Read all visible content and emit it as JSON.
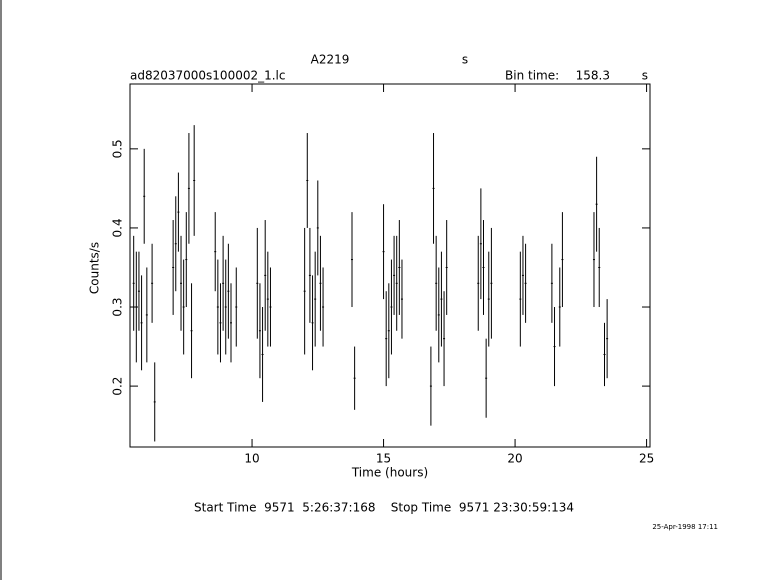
{
  "chart_data": {
    "type": "scatter",
    "title": "A2219",
    "title_unit": "s",
    "file": "ad82037000s100002_1.lc",
    "bin_time_label": "Bin time:",
    "bin_time": "158.3",
    "bin_time_unit": "s",
    "xlabel": "Time (hours)",
    "ylabel": "Counts/s",
    "footer": "Start Time  9571  5:26:37:168    Stop Time  9571 23:30:59:134",
    "stamp": "25-Apr-1998 17:11",
    "color": "#000000",
    "xlim": [
      5.36,
      25.13
    ],
    "ylim": [
      0.123,
      0.582
    ],
    "xticks": [
      10,
      15,
      20,
      25
    ],
    "yticks": [
      0.2,
      0.3,
      0.4,
      0.5
    ],
    "x": [
      5.5,
      5.6,
      5.7,
      5.8,
      5.9,
      6.0,
      6.2,
      6.3,
      7.0,
      7.1,
      7.2,
      7.3,
      7.4,
      7.5,
      7.6,
      7.7,
      7.8,
      8.6,
      8.7,
      8.8,
      8.9,
      9.0,
      9.1,
      9.2,
      9.4,
      10.2,
      10.3,
      10.4,
      10.5,
      10.6,
      10.7,
      12.0,
      12.1,
      12.2,
      12.3,
      12.4,
      12.5,
      12.6,
      12.7,
      13.8,
      13.9,
      15.0,
      15.1,
      15.2,
      15.3,
      15.4,
      15.5,
      15.6,
      15.7,
      16.8,
      16.9,
      17.0,
      17.1,
      17.2,
      17.3,
      17.4,
      18.6,
      18.7,
      18.8,
      18.9,
      19.0,
      19.1,
      20.2,
      20.3,
      20.4,
      21.4,
      21.5,
      21.7,
      21.8,
      23.0,
      23.1,
      23.2,
      23.4,
      23.5
    ],
    "values": [
      0.33,
      0.3,
      0.32,
      0.28,
      0.44,
      0.29,
      0.33,
      0.18,
      0.35,
      0.38,
      0.42,
      0.33,
      0.3,
      0.36,
      0.45,
      0.27,
      0.46,
      0.37,
      0.3,
      0.28,
      0.33,
      0.3,
      0.32,
      0.28,
      0.3,
      0.33,
      0.27,
      0.24,
      0.34,
      0.31,
      0.3,
      0.32,
      0.46,
      0.34,
      0.28,
      0.31,
      0.4,
      0.33,
      0.3,
      0.36,
      0.21,
      0.37,
      0.26,
      0.27,
      0.3,
      0.34,
      0.33,
      0.35,
      0.31,
      0.2,
      0.45,
      0.33,
      0.29,
      0.31,
      0.26,
      0.35,
      0.33,
      0.38,
      0.35,
      0.21,
      0.31,
      0.33,
      0.31,
      0.34,
      0.33,
      0.33,
      0.25,
      0.3,
      0.36,
      0.36,
      0.43,
      0.35,
      0.24,
      0.26
    ],
    "errors": [
      0.06,
      0.07,
      0.05,
      0.06,
      0.06,
      0.06,
      0.05,
      0.05,
      0.06,
      0.06,
      0.05,
      0.06,
      0.06,
      0.06,
      0.07,
      0.06,
      0.07,
      0.05,
      0.06,
      0.05,
      0.06,
      0.06,
      0.06,
      0.05,
      0.05,
      0.07,
      0.06,
      0.06,
      0.07,
      0.06,
      0.05,
      0.08,
      0.06,
      0.06,
      0.06,
      0.06,
      0.06,
      0.06,
      0.05,
      0.06,
      0.04,
      0.06,
      0.06,
      0.06,
      0.06,
      0.05,
      0.06,
      0.06,
      0.05,
      0.05,
      0.07,
      0.06,
      0.06,
      0.06,
      0.06,
      0.06,
      0.06,
      0.07,
      0.06,
      0.05,
      0.06,
      0.07,
      0.06,
      0.05,
      0.05,
      0.05,
      0.05,
      0.05,
      0.06,
      0.06,
      0.06,
      0.05,
      0.04,
      0.05
    ]
  }
}
